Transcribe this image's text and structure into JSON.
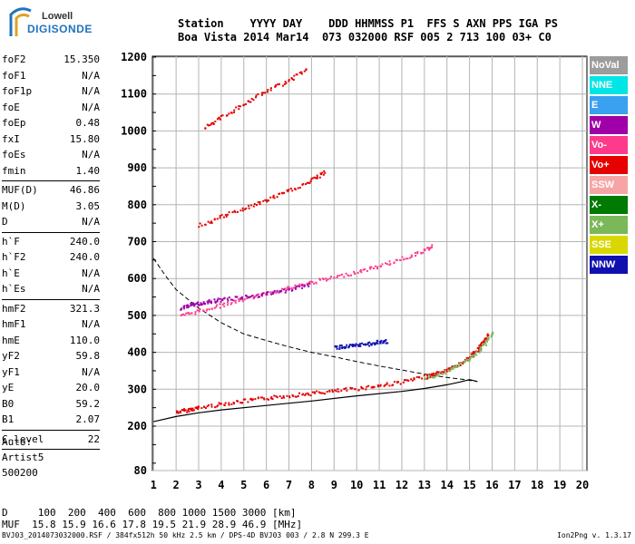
{
  "logo": {
    "top": "Lowell",
    "bottom": "DIGISONDE"
  },
  "header": {
    "line1": "Station    YYYY DAY    DDD HHMMSS P1  FFS S AXN PPS IGA PS",
    "line2": "Boa Vista 2014 Mar14  073 032000 RSF 005 2 713 100 03+ C0"
  },
  "params": [
    {
      "name": "foF2",
      "value": "15.350"
    },
    {
      "name": "foF1",
      "value": "N/A"
    },
    {
      "name": "foF1p",
      "value": "N/A"
    },
    {
      "name": "foE",
      "value": "N/A"
    },
    {
      "name": "foEp",
      "value": "0.48"
    },
    {
      "name": "fxI",
      "value": "15.80"
    },
    {
      "name": "foEs",
      "value": "N/A"
    },
    {
      "name": "fmin",
      "value": "1.40"
    },
    {
      "sep": true
    },
    {
      "name": "MUF(D)",
      "value": "46.86"
    },
    {
      "name": "M(D)",
      "value": "3.05"
    },
    {
      "name": "D",
      "value": "N/A"
    },
    {
      "sep": true
    },
    {
      "name": "h`F",
      "value": "240.0"
    },
    {
      "name": "h`F2",
      "value": "240.0"
    },
    {
      "name": "h`E",
      "value": "N/A"
    },
    {
      "name": "h`Es",
      "value": "N/A"
    },
    {
      "sep": true
    },
    {
      "name": "hmF2",
      "value": "321.3"
    },
    {
      "name": "hmF1",
      "value": "N/A"
    },
    {
      "name": "hmE",
      "value": "110.0"
    },
    {
      "name": "yF2",
      "value": "59.8"
    },
    {
      "name": "yF1",
      "value": "N/A"
    },
    {
      "name": "yE",
      "value": "20.0"
    },
    {
      "name": "B0",
      "value": "59.2"
    },
    {
      "name": "B1",
      "value": "2.07"
    },
    {
      "sep": true
    },
    {
      "name": "C-level",
      "value": "22"
    },
    {
      "sep": true
    }
  ],
  "auto": [
    "Auto:",
    "Artist5",
    "500200"
  ],
  "legend": [
    {
      "label": "NoVal",
      "color": "#9c9c9c"
    },
    {
      "label": "NNE",
      "color": "#00e5e5"
    },
    {
      "label": "E",
      "color": "#3aa0f0"
    },
    {
      "label": "W",
      "color": "#a000a8"
    },
    {
      "label": "Vo-",
      "color": "#ff3a8c"
    },
    {
      "label": "Vo+",
      "color": "#e60000"
    },
    {
      "label": "SSW",
      "color": "#f5a5a5"
    },
    {
      "label": "X-",
      "color": "#007a00"
    },
    {
      "label": "X+",
      "color": "#7ab85a"
    },
    {
      "label": "SSE",
      "color": "#d8d800"
    },
    {
      "label": "NNW",
      "color": "#1010b0"
    }
  ],
  "bottom": {
    "line1": "D     100  200  400  600  800 1000 1500 3000 [km]",
    "line2": "MUF  15.8 15.9 16.6 17.8 19.5 21.9 28.9 46.9 [MHz]"
  },
  "footer": {
    "left": "BVJ03_2014073032000.RSF / 384fx512h 50 kHz 2.5 km / DPS-4D BVJ03 003 / 2.8 N 299.3 E",
    "right": "Ion2Png v. 1.3.17"
  },
  "chart_data": {
    "type": "scatter",
    "title": "",
    "xlabel": "",
    "ylabel": "",
    "x_ticks": [
      1,
      2,
      3,
      4,
      5,
      6,
      7,
      8,
      9,
      10,
      11,
      12,
      13,
      14,
      15,
      16,
      17,
      18,
      19,
      20
    ],
    "y_ticks": [
      80,
      200,
      300,
      400,
      500,
      600,
      700,
      800,
      900,
      1000,
      1100,
      1200
    ],
    "xlim": [
      0.95,
      20.2
    ],
    "ylim": [
      80,
      1200
    ],
    "grid": true,
    "legend_position": "right",
    "series": [
      {
        "name": "Vo+",
        "color": "#e60000",
        "points": [
          [
            2.0,
            240
          ],
          [
            2.5,
            246
          ],
          [
            3,
            252
          ],
          [
            4,
            262
          ],
          [
            5,
            270
          ],
          [
            6,
            278
          ],
          [
            7,
            285
          ],
          [
            8,
            291
          ],
          [
            9,
            297
          ],
          [
            10,
            304
          ],
          [
            11,
            312
          ],
          [
            12,
            322
          ],
          [
            13,
            335
          ],
          [
            13.5,
            344
          ],
          [
            14,
            355
          ],
          [
            14.5,
            370
          ],
          [
            15,
            388
          ],
          [
            15.3,
            405
          ],
          [
            15.5,
            425
          ],
          [
            15.8,
            450
          ]
        ]
      },
      {
        "name": "Vo-",
        "color": "#ff3a8c",
        "points": [
          [
            2.2,
            500
          ],
          [
            3,
            515
          ],
          [
            4,
            530
          ],
          [
            5,
            546
          ],
          [
            6,
            562
          ],
          [
            7,
            577
          ],
          [
            8,
            592
          ],
          [
            9,
            605
          ],
          [
            10,
            620
          ],
          [
            11,
            636
          ],
          [
            12,
            656
          ],
          [
            13,
            678
          ],
          [
            13.3,
            690
          ]
        ]
      },
      {
        "name": "Vo+ 3rd",
        "color": "#e60000",
        "points": [
          [
            3,
            745
          ],
          [
            4,
            770
          ],
          [
            5,
            792
          ],
          [
            6,
            815
          ],
          [
            7,
            840
          ],
          [
            8,
            868
          ],
          [
            8.6,
            893
          ]
        ]
      },
      {
        "name": "Vo+ 4th",
        "color": "#e60000",
        "points": [
          [
            3.2,
            1010
          ],
          [
            4,
            1040
          ],
          [
            5,
            1075
          ],
          [
            6,
            1110
          ],
          [
            7,
            1140
          ],
          [
            7.8,
            1170
          ]
        ]
      },
      {
        "name": "X+",
        "color": "#7ab85a",
        "points": [
          [
            13,
            330
          ],
          [
            14,
            350
          ],
          [
            14.7,
            375
          ],
          [
            15.3,
            400
          ],
          [
            15.7,
            430
          ],
          [
            16,
            455
          ]
        ]
      },
      {
        "name": "NNW",
        "color": "#1010b0",
        "points": [
          [
            9,
            415
          ],
          [
            9.5,
            418
          ],
          [
            10,
            420
          ],
          [
            10.5,
            425
          ],
          [
            11,
            430
          ],
          [
            11.3,
            432
          ]
        ]
      },
      {
        "name": "W",
        "color": "#a000a8",
        "points": [
          [
            2.2,
            520
          ],
          [
            2.6,
            530
          ],
          [
            3,
            535
          ],
          [
            3.5,
            540
          ],
          [
            4,
            545
          ],
          [
            5,
            552
          ],
          [
            6,
            560
          ],
          [
            7,
            572
          ],
          [
            8,
            585
          ]
        ]
      }
    ],
    "profile_solid": [
      [
        1,
        212
      ],
      [
        2,
        226
      ],
      [
        3,
        236
      ],
      [
        4,
        244
      ],
      [
        6,
        256
      ],
      [
        8,
        268
      ],
      [
        10,
        282
      ],
      [
        12,
        294
      ],
      [
        13,
        302
      ],
      [
        14,
        312
      ],
      [
        14.6,
        320
      ],
      [
        15.0,
        326
      ],
      [
        15.35,
        321
      ]
    ],
    "profile_dashed": [
      [
        1,
        655
      ],
      [
        1.5,
        610
      ],
      [
        2,
        570
      ],
      [
        3,
        520
      ],
      [
        4,
        480
      ],
      [
        5,
        450
      ],
      [
        6,
        432
      ],
      [
        7,
        415
      ],
      [
        8,
        400
      ],
      [
        9,
        388
      ],
      [
        10,
        375
      ],
      [
        11,
        363
      ],
      [
        12,
        352
      ],
      [
        13,
        341
      ],
      [
        14,
        332
      ],
      [
        14.8,
        326
      ],
      [
        15.35,
        321
      ]
    ]
  }
}
